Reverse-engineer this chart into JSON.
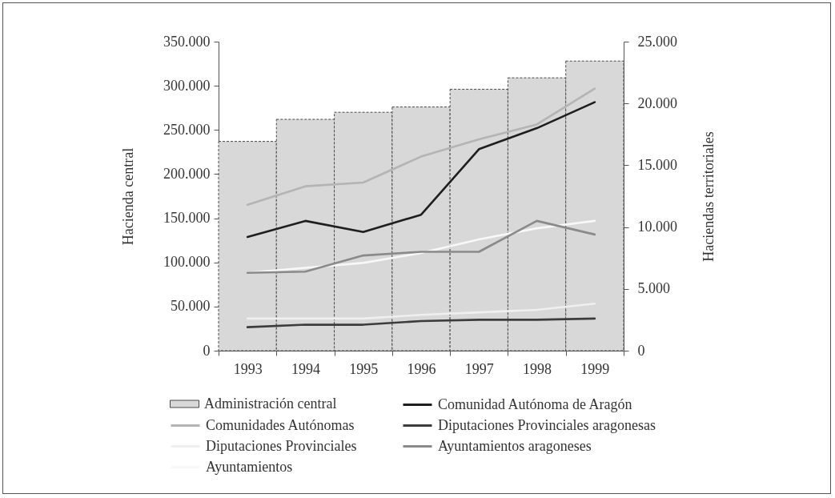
{
  "chart_data": {
    "type": "line",
    "ylabel": "Hacienda central",
    "y2label": "Haciendas territoriales",
    "categories": [
      "1993",
      "1994",
      "1995",
      "1996",
      "1997",
      "1998",
      "1999"
    ],
    "series": [
      {
        "name": "Administración central",
        "type": "bar",
        "color": "#d8d8d8",
        "values": [
          237000,
          262000,
          270000,
          276000,
          296000,
          309000,
          328000
        ]
      },
      {
        "name": "Comunidades Autónomas",
        "axis": "y2",
        "color": "#b4b4b4",
        "values": [
          11800,
          13300,
          13600,
          15700,
          17100,
          18300,
          21200
        ]
      },
      {
        "name": "Diputaciones Provinciales",
        "axis": "y2",
        "color": "#efefef",
        "values": [
          2600,
          2600,
          2600,
          2900,
          3100,
          3300,
          3800
        ]
      },
      {
        "name": "Ayuntamientos",
        "axis": "y2",
        "color": "#f8f8f8",
        "values": [
          6300,
          6700,
          7100,
          7900,
          9000,
          9900,
          10500
        ]
      },
      {
        "name": "Comunidad Autónoma de Aragón",
        "axis": "y2",
        "color": "#1e1e1e",
        "values": [
          9200,
          10500,
          9600,
          11000,
          16300,
          18000,
          20100
        ]
      },
      {
        "name": "Diputaciones Provinciales aragonesas",
        "axis": "y2",
        "color": "#3c3c3c",
        "values": [
          1900,
          2100,
          2100,
          2400,
          2500,
          2500,
          2600
        ]
      },
      {
        "name": "Ayuntamientos aragoneses",
        "axis": "y2",
        "color": "#8a8a8a",
        "values": [
          6300,
          6400,
          7700,
          8000,
          8000,
          10500,
          9400
        ]
      }
    ],
    "ylim": [
      0,
      350000
    ],
    "yticks": [
      0,
      {
        "value": 50000,
        "label": "50.000"
      },
      {
        "value": 100000,
        "label": "100.000"
      },
      {
        "value": 150000,
        "label": "150.000"
      },
      {
        "value": 200000,
        "label": "200.000"
      },
      {
        "value": 250000,
        "label": "250.000"
      },
      {
        "value": 300000,
        "label": "300.000"
      },
      {
        "value": 350000,
        "label": "350.000"
      }
    ],
    "y2lim": [
      0,
      25000
    ],
    "y2ticks": [
      0,
      {
        "value": 5000,
        "label": "5.000"
      },
      {
        "value": 10000,
        "label": "10.000"
      },
      {
        "value": 15000,
        "label": "15.000"
      },
      {
        "value": 20000,
        "label": "20.000"
      },
      {
        "value": 25000,
        "label": "25.000"
      }
    ],
    "legend": "bottom"
  }
}
